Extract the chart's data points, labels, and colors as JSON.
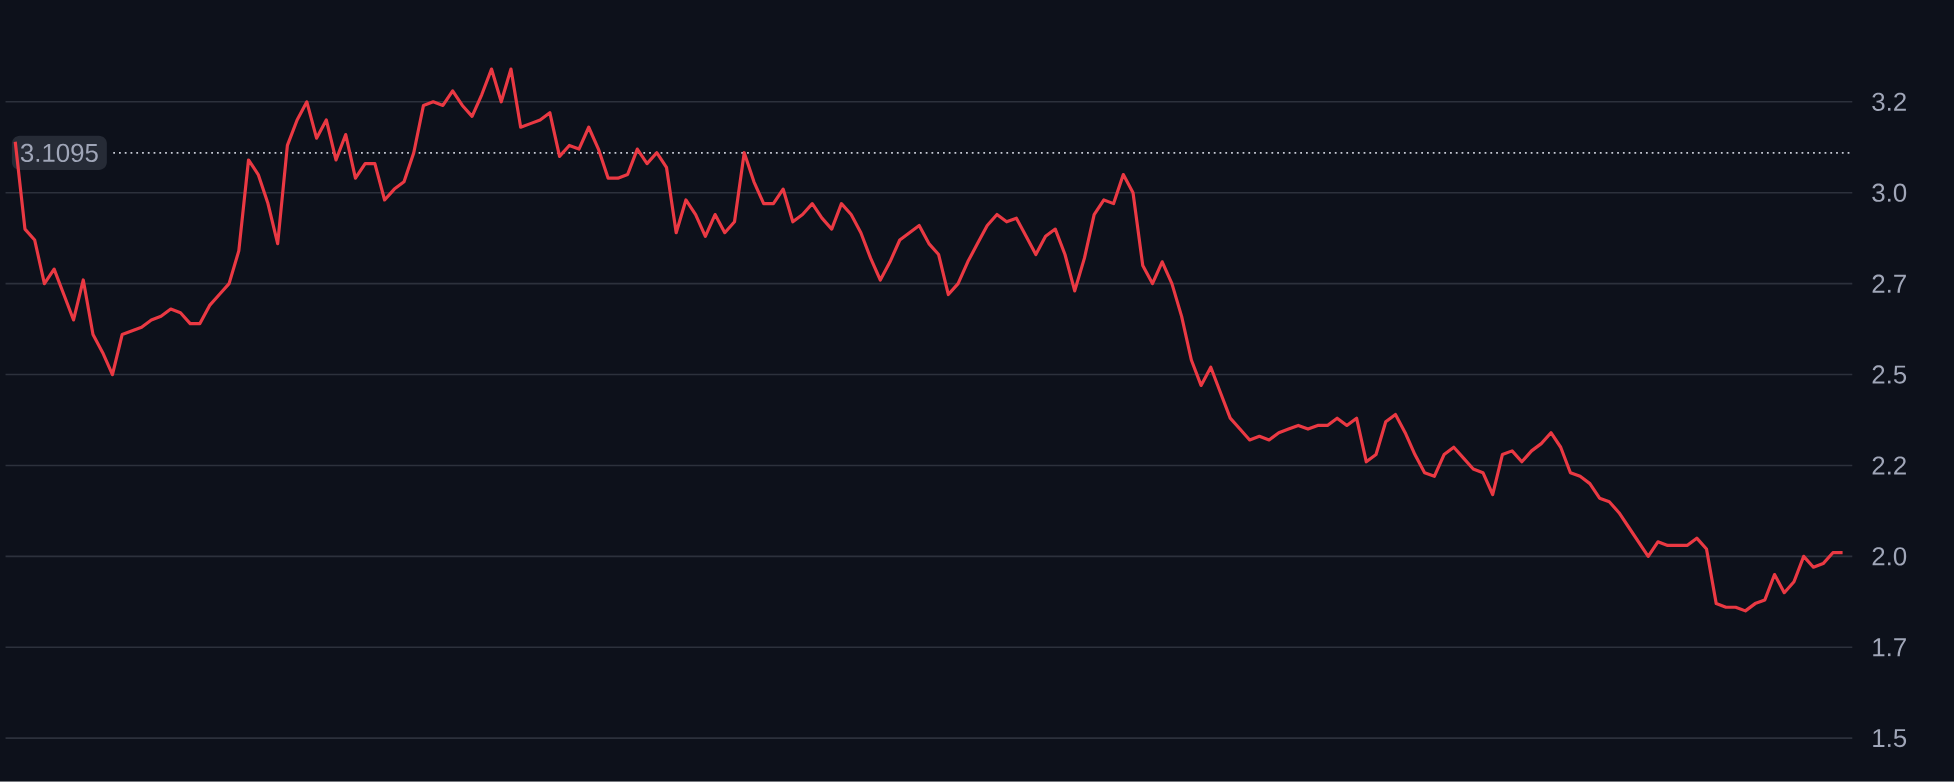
{
  "chart_data": {
    "type": "line",
    "categories": [
      null,
      null,
      null,
      null,
      null,
      null,
      null,
      null,
      null,
      null,
      null,
      null,
      null,
      null,
      null,
      null,
      null,
      null,
      null,
      null,
      null,
      null,
      null,
      null,
      null,
      null,
      null,
      null,
      null,
      null,
      null,
      null,
      null,
      null,
      null,
      null,
      null,
      null,
      null,
      null,
      null,
      null,
      null,
      null,
      null,
      null,
      null,
      null,
      null,
      null,
      null,
      null,
      null,
      null,
      null,
      null,
      null,
      null,
      null,
      null,
      null,
      null,
      null,
      null,
      null,
      null,
      null,
      null,
      null,
      null,
      null,
      null,
      null,
      null,
      null,
      null,
      null,
      null,
      null,
      null,
      null,
      null,
      null,
      null,
      null,
      null,
      null,
      null,
      null,
      null,
      null,
      null,
      null,
      null,
      null,
      null,
      null,
      null,
      null,
      null,
      null,
      null,
      null,
      null,
      null,
      null,
      null,
      null,
      null,
      null,
      null,
      null,
      null,
      null,
      null,
      null,
      null,
      null,
      null,
      null,
      null,
      null,
      null,
      null,
      null,
      null,
      null,
      null,
      null,
      null,
      null,
      null,
      null,
      null,
      null,
      null,
      null,
      null,
      null,
      null,
      null,
      null,
      null,
      null,
      null,
      null,
      null,
      null,
      null,
      null,
      null,
      null,
      null,
      null,
      null,
      null,
      null,
      null,
      null,
      null,
      null,
      null,
      null,
      null,
      null,
      null,
      null,
      null,
      null,
      null,
      null,
      null,
      null,
      null,
      null,
      null,
      null,
      null,
      null,
      null,
      null,
      null,
      null,
      null,
      null,
      null,
      null,
      null,
      null
    ],
    "series": [
      {
        "color": "#ea3943",
        "values": [
          3.14,
          2.9,
          2.87,
          2.75,
          2.79,
          2.72,
          2.65,
          2.76,
          2.61,
          2.56,
          2.5,
          2.61,
          2.62,
          2.63,
          2.65,
          2.66,
          2.68,
          2.67,
          2.64,
          2.64,
          2.69,
          2.72,
          2.75,
          2.84,
          3.09,
          3.05,
          2.97,
          2.86,
          3.13,
          3.2,
          3.25,
          3.15,
          3.2,
          3.09,
          3.16,
          3.04,
          3.08,
          3.08,
          2.98,
          3.01,
          3.03,
          3.11,
          3.24,
          3.25,
          3.24,
          3.28,
          3.24,
          3.21,
          3.27,
          3.34,
          3.25,
          3.34,
          3.18,
          3.19,
          3.2,
          3.22,
          3.1,
          3.13,
          3.12,
          3.18,
          3.12,
          3.04,
          3.04,
          3.05,
          3.12,
          3.08,
          3.11,
          3.07,
          2.89,
          2.98,
          2.94,
          2.88,
          2.94,
          2.89,
          2.92,
          3.11,
          3.03,
          2.97,
          2.97,
          3.01,
          2.92,
          2.94,
          2.97,
          2.93,
          2.9,
          2.97,
          2.94,
          2.89,
          2.82,
          2.76,
          2.81,
          2.87,
          2.89,
          2.91,
          2.86,
          2.83,
          2.72,
          2.75,
          2.81,
          2.86,
          2.91,
          2.94,
          2.92,
          2.93,
          2.88,
          2.83,
          2.88,
          2.9,
          2.83,
          2.73,
          2.82,
          2.94,
          2.98,
          2.97,
          3.05,
          3.0,
          2.8,
          2.75,
          2.81,
          2.75,
          2.66,
          2.54,
          2.47,
          2.52,
          2.45,
          2.38,
          2.35,
          2.32,
          2.33,
          2.32,
          2.34,
          2.35,
          2.36,
          2.35,
          2.36,
          2.36,
          2.38,
          2.36,
          2.38,
          2.26,
          2.28,
          2.37,
          2.39,
          2.34,
          2.28,
          2.23,
          2.22,
          2.28,
          2.3,
          2.27,
          2.24,
          2.23,
          2.17,
          2.28,
          2.29,
          2.26,
          2.29,
          2.31,
          2.34,
          2.3,
          2.23,
          2.22,
          2.2,
          2.16,
          2.15,
          2.12,
          2.08,
          2.04,
          2.0,
          2.04,
          2.03,
          2.03,
          2.03,
          2.05,
          2.02,
          1.87,
          1.86,
          1.86,
          1.85,
          1.87,
          1.88,
          1.95,
          1.9,
          1.93,
          2.0,
          1.97,
          1.98,
          2.01,
          2.01
        ]
      }
    ],
    "ylim": [
      1.38,
      3.53
    ],
    "yticks": [
      {
        "value": 1.5,
        "label": "1.5"
      },
      {
        "value": 1.75,
        "label": "1.7"
      },
      {
        "value": 2.0,
        "label": "2.0"
      },
      {
        "value": 2.25,
        "label": "2.2"
      },
      {
        "value": 2.5,
        "label": "2.5"
      },
      {
        "value": 2.75,
        "label": "2.7"
      },
      {
        "value": 3.0,
        "label": "3.0"
      },
      {
        "value": 3.25,
        "label": "3.2"
      }
    ],
    "ref_lines": [
      {
        "axis": "y",
        "value": 3.1095,
        "label": "3.1095",
        "color": "#c8ccd6",
        "line_style": "dotted"
      }
    ],
    "grid": "y",
    "tick_labels": "y",
    "marker": "none",
    "line_style": "solid"
  }
}
